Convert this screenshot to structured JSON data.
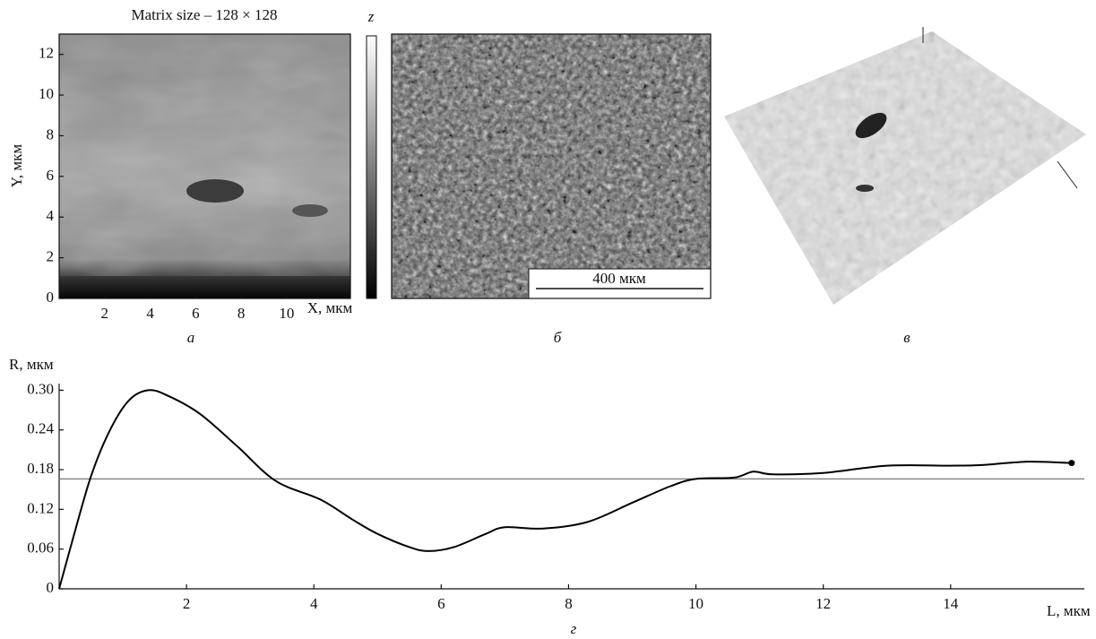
{
  "chart_data": [
    {
      "type": "heatmap",
      "title": "Matrix size – 128 × 128",
      "xlabel": "X, мкм",
      "ylabel": "Y, мкм",
      "colorbar_label": "z",
      "panel_label": "а",
      "xlim": [
        0,
        12.8
      ],
      "ylim": [
        0,
        13
      ],
      "xticks": [
        2,
        4,
        6,
        8,
        10
      ],
      "yticks": [
        0,
        2,
        4,
        6,
        8,
        10,
        12
      ]
    },
    {
      "type": "micrograph",
      "scale_label": "400 мкм",
      "panel_label": "б"
    },
    {
      "type": "surface",
      "panel_label": "в"
    },
    {
      "type": "line",
      "xlabel": "L, мкм",
      "ylabel": "R, мкм",
      "panel_label": "г",
      "color": "#000",
      "xlim": [
        0,
        16.1
      ],
      "ylim": [
        0,
        0.31
      ],
      "xticks": [
        2,
        4,
        6,
        8,
        10,
        12,
        14
      ],
      "yticks": [
        0,
        0.06,
        0.12,
        0.18,
        0.24,
        {
          "value": 0.3,
          "label": "0.30"
        }
      ],
      "reference": 0.166,
      "x": [
        0,
        0.2,
        0.5,
        0.8,
        1.1,
        1.4,
        1.7,
        2.2,
        2.8,
        3.4,
        4.1,
        4.6,
        5.0,
        5.5,
        5.8,
        6.2,
        6.7,
        7.0,
        7.6,
        8.3,
        9.0,
        9.6,
        10.0,
        10.6,
        10.9,
        11.2,
        12.0,
        13.0,
        14.0,
        14.5,
        15.2,
        15.9
      ],
      "values": [
        0,
        0.07,
        0.17,
        0.24,
        0.285,
        0.3,
        0.292,
        0.265,
        0.215,
        0.163,
        0.135,
        0.105,
        0.083,
        0.063,
        0.057,
        0.063,
        0.083,
        0.093,
        0.091,
        0.101,
        0.13,
        0.155,
        0.166,
        0.168,
        0.177,
        0.173,
        0.175,
        0.186,
        0.186,
        0.187,
        0.192,
        0.19
      ]
    }
  ]
}
